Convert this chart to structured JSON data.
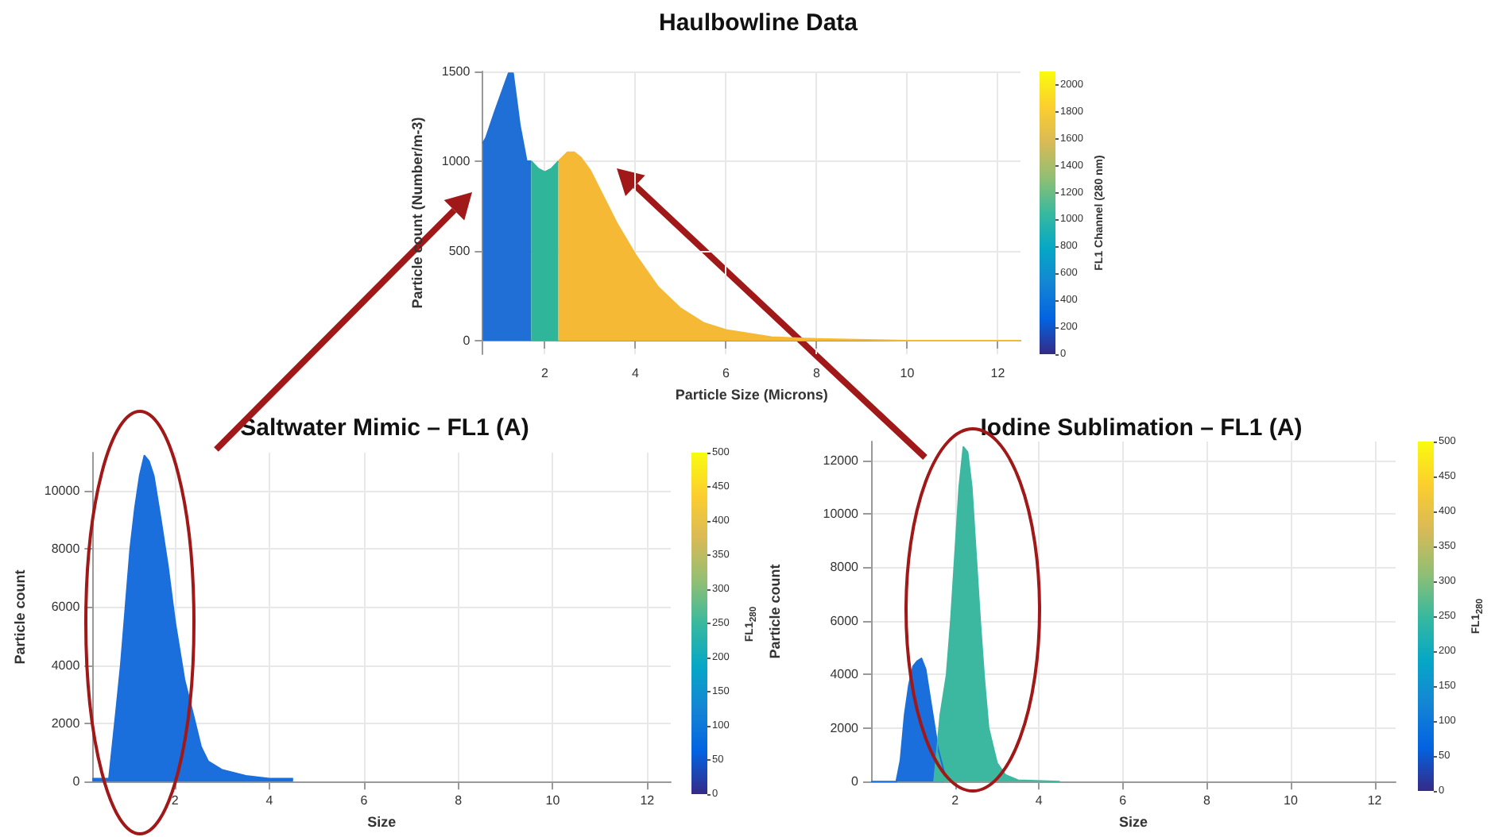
{
  "chart_data": [
    {
      "type": "area",
      "title": "Haulbowline Data",
      "xlabel": "Particle Size (Microns)",
      "ylabel": "Particle count (Number/m-3)",
      "clabel": "FL1 Channel (280 nm)",
      "clim": [
        0,
        2100
      ],
      "cticks": [
        0,
        200,
        400,
        600,
        800,
        1000,
        1200,
        1400,
        1600,
        1800,
        2000
      ],
      "xlim": [
        0.63,
        12.5
      ],
      "xticks": [
        2,
        4,
        6,
        8,
        10,
        12
      ],
      "ylim": [
        -75,
        1500
      ],
      "yticks": [
        0,
        500,
        1000,
        1500
      ],
      "grid": true,
      "series": [
        {
          "color": "#1f6fd6",
          "x": [
            0.63,
            0.7,
            0.9,
            1.1,
            1.2,
            1.3,
            1.45,
            1.6,
            1.7
          ],
          "values": [
            1100,
            1130,
            1280,
            1420,
            1490,
            1490,
            1200,
            1000,
            1000
          ]
        },
        {
          "color": "#2fb59a",
          "x": [
            1.7,
            1.85,
            2.0,
            2.15,
            2.3
          ],
          "values": [
            1000,
            960,
            940,
            960,
            1000
          ]
        },
        {
          "color": "#f5b935",
          "x": [
            2.3,
            2.5,
            2.65,
            2.8,
            3.0,
            3.3,
            3.6,
            4.0,
            4.5,
            5.0,
            5.5,
            6.0,
            7.0,
            8.0,
            10,
            12.5
          ],
          "values": [
            1000,
            1050,
            1050,
            1020,
            950,
            800,
            650,
            480,
            300,
            180,
            100,
            60,
            20,
            10,
            0,
            0
          ]
        }
      ]
    },
    {
      "type": "area",
      "title": "Saltwater Mimic – FL1 (A)",
      "xlabel": "Size",
      "ylabel": "Particle count",
      "clabel": "FL1$_{280}$",
      "clim": [
        0,
        500
      ],
      "cticks": [
        0,
        50,
        100,
        150,
        200,
        250,
        300,
        350,
        400,
        450,
        500
      ],
      "xlim": [
        0.25,
        12.5
      ],
      "xticks": [
        2,
        4,
        6,
        8,
        10,
        12
      ],
      "ylim": [
        0,
        11300
      ],
      "yticks": [
        0,
        2000,
        4000,
        6000,
        8000,
        10000
      ],
      "grid": true,
      "series": [
        {
          "color": "#1a6fdc",
          "x": [
            0.25,
            0.6,
            0.75,
            0.85,
            0.95,
            1.05,
            1.15,
            1.25,
            1.35,
            1.45,
            1.55,
            1.7,
            1.85,
            2.0,
            2.2,
            2.4,
            2.55,
            2.7,
            3.0,
            3.5,
            4.0,
            4.5
          ],
          "values": [
            100,
            100,
            2400,
            4000,
            6000,
            8000,
            9400,
            10500,
            11200,
            11000,
            10500,
            9000,
            7400,
            5500,
            3500,
            2200,
            1200,
            700,
            400,
            200,
            100,
            100
          ]
        }
      ]
    },
    {
      "type": "area",
      "title": "Iodine Sublimation – FL1 (A)",
      "xlabel": "Size",
      "ylabel": "Particle count",
      "clabel": "FL1$_{280}$",
      "clim": [
        0,
        500
      ],
      "cticks": [
        0,
        50,
        100,
        150,
        200,
        250,
        300,
        350,
        400,
        450,
        500
      ],
      "xlim": [
        0,
        12.5
      ],
      "xticks": [
        2,
        4,
        6,
        8,
        10,
        12
      ],
      "ylim": [
        0,
        12700
      ],
      "yticks": [
        0,
        2000,
        4000,
        6000,
        8000,
        10000,
        12000
      ],
      "grid": true,
      "series": [
        {
          "color": "#1a6fdc",
          "x": [
            0,
            0.6,
            0.7,
            0.8,
            0.9,
            1.0,
            1.1,
            1.2,
            1.3,
            1.4,
            1.5,
            1.6,
            1.75
          ],
          "values": [
            0,
            0,
            800,
            2500,
            3600,
            4300,
            4500,
            4600,
            4200,
            3200,
            2200,
            1200,
            300
          ]
        },
        {
          "color": "#3cb8a0",
          "x": [
            1.5,
            1.65,
            1.8,
            1.9,
            2.0,
            2.1,
            2.2,
            2.3,
            2.4,
            2.5,
            2.6,
            2.7,
            2.8,
            3.0,
            3.2,
            3.5,
            4.5
          ],
          "values": [
            0,
            2500,
            4000,
            6000,
            8500,
            11000,
            12500,
            12300,
            11000,
            8500,
            6000,
            3800,
            2000,
            700,
            250,
            50,
            0
          ]
        }
      ]
    }
  ]
}
